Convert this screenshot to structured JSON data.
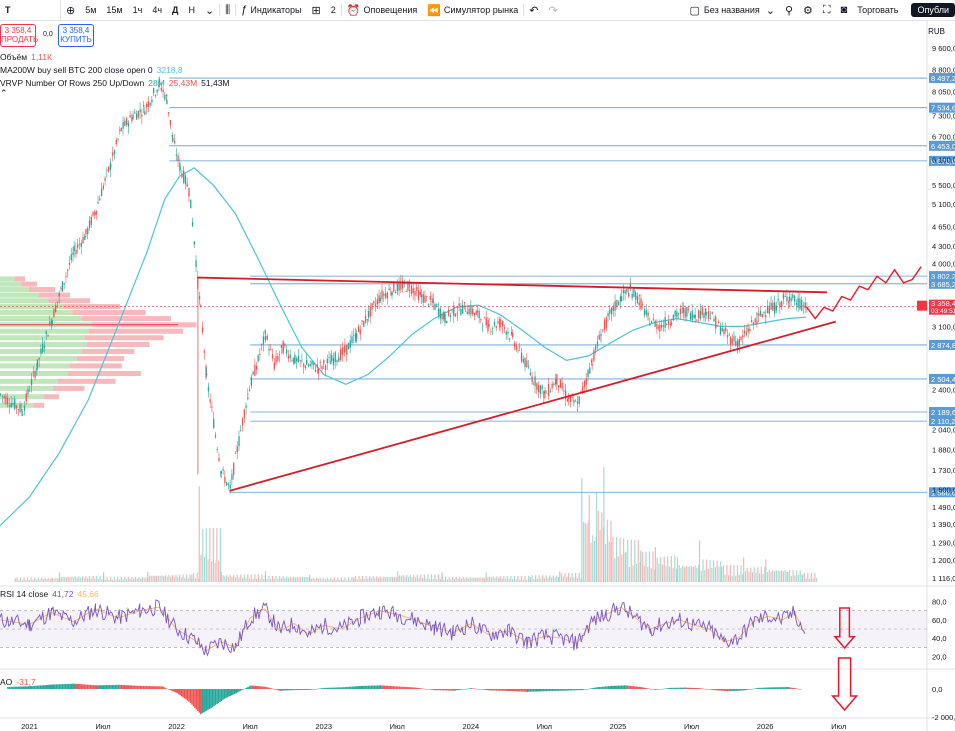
{
  "toolbar": {
    "symbol": "T",
    "intervals": [
      "5м",
      "15м",
      "1ч",
      "4ч",
      "Д",
      "Н"
    ],
    "indicators_label": "Индикаторы",
    "layout_count": "2",
    "alerts_label": "Оповещения",
    "replay_label": "Симулятор рынка",
    "layout_name": "Без названия",
    "trade_label": "Торговать",
    "publish_label": "Опубли"
  },
  "order_panel": {
    "sell_price": "3 358,4",
    "sell_label": "ПРОДАТЬ",
    "spread": "0,0",
    "buy_price": "3 358,4",
    "buy_label": "КУПИТЬ"
  },
  "legends": {
    "volume_name": "Объём",
    "volume_value": "1,11К",
    "ma_name": "MA200W buy sell BTC 200 close open 0",
    "ma_value": "3218,8",
    "vrvp_name": "VRVP Number Of Rows 250 Up/Down",
    "vrvp_up": "28M",
    "vrvp_down": "25,43M",
    "vrvp_total": "51,43M",
    "rsi_name": "RSI 14 close",
    "rsi_value1": "41,72",
    "rsi_value2": "45,66",
    "ao_name": "AO",
    "ao_value": "-31,7"
  },
  "currency": "RUB",
  "colors": {
    "up": "#26a69a",
    "down": "#ef5350",
    "ma": "#4ec4d8",
    "trendline": "#d81b25",
    "level": "#5b9bd5",
    "rsi": "#7e57c2",
    "rsi_signal": "#f4b860",
    "last_price": "#f23645"
  },
  "chart_data": {
    "type": "candlestick",
    "scale": "log",
    "y_ticks": [
      "9 600,0",
      "8 800,0",
      "8 050,0",
      "7 300,0",
      "6 700,0",
      "6 100,0",
      "5 500,0",
      "5 100,0",
      "4 650,0",
      "4 300,0",
      "4 000,0",
      "3 100,0",
      "2 400,0",
      "2 040,0",
      "1 880,0",
      "1 730,0",
      "1 600,0",
      "1 490,0",
      "1 390,0",
      "1 290,0",
      "1 200,0",
      "1 116,0"
    ],
    "x_ticks": [
      "2021",
      "Июл",
      "2022",
      "Июл",
      "2023",
      "Июл",
      "2024",
      "Июл",
      "2025",
      "Июл",
      "2026",
      "Июл"
    ],
    "price_levels": [
      {
        "label": "8 497,2",
        "value": 8497.2
      },
      {
        "label": "7 534,6",
        "value": 7534.6
      },
      {
        "label": "6 453,0",
        "value": 6453.0
      },
      {
        "label": "6 070,6",
        "value": 6070.6
      },
      {
        "label": "3 802,2",
        "value": 3802.2
      },
      {
        "label": "3 685,2",
        "value": 3685.2
      },
      {
        "label": "2 874,8",
        "value": 2874.8
      },
      {
        "label": "2 504,4",
        "value": 2504.4
      },
      {
        "label": "2 189,6",
        "value": 2189.6
      },
      {
        "label": "2 110,2",
        "value": 2110.2
      },
      {
        "label": "1 580,6",
        "value": 1580.6
      }
    ],
    "last_price": {
      "label": "3 358,4",
      "value": 3358.4,
      "countdown": "03:49:51"
    },
    "price_path": [
      [
        2020.8,
        2350
      ],
      [
        2020.95,
        2200
      ],
      [
        2021.05,
        2650
      ],
      [
        2021.15,
        3200
      ],
      [
        2021.22,
        3650
      ],
      [
        2021.3,
        4200
      ],
      [
        2021.38,
        4500
      ],
      [
        2021.45,
        5000
      ],
      [
        2021.55,
        6000
      ],
      [
        2021.62,
        6900
      ],
      [
        2021.7,
        7300
      ],
      [
        2021.78,
        7500
      ],
      [
        2021.88,
        8300
      ],
      [
        2021.93,
        7800
      ],
      [
        2021.97,
        6600
      ],
      [
        2022.02,
        5900
      ],
      [
        2022.08,
        5400
      ],
      [
        2022.14,
        3700
      ],
      [
        2022.16,
        3300
      ],
      [
        2022.2,
        2500
      ],
      [
        2022.26,
        2000
      ],
      [
        2022.3,
        1720
      ],
      [
        2022.36,
        1600
      ],
      [
        2022.42,
        1950
      ],
      [
        2022.48,
        2350
      ],
      [
        2022.55,
        2700
      ],
      [
        2022.6,
        3000
      ],
      [
        2022.66,
        2650
      ],
      [
        2022.72,
        2850
      ],
      [
        2022.8,
        2700
      ],
      [
        2022.88,
        2650
      ],
      [
        2022.96,
        2620
      ],
      [
        2023.05,
        2700
      ],
      [
        2023.14,
        2800
      ],
      [
        2023.22,
        3000
      ],
      [
        2023.3,
        3250
      ],
      [
        2023.38,
        3500
      ],
      [
        2023.46,
        3600
      ],
      [
        2023.52,
        3650
      ],
      [
        2023.58,
        3650
      ],
      [
        2023.66,
        3500
      ],
      [
        2023.74,
        3400
      ],
      [
        2023.82,
        3200
      ],
      [
        2023.88,
        3300
      ],
      [
        2023.96,
        3350
      ],
      [
        2024.04,
        3250
      ],
      [
        2024.12,
        3100
      ],
      [
        2024.2,
        3150
      ],
      [
        2024.28,
        2950
      ],
      [
        2024.34,
        2750
      ],
      [
        2024.42,
        2500
      ],
      [
        2024.5,
        2350
      ],
      [
        2024.58,
        2500
      ],
      [
        2024.66,
        2300
      ],
      [
        2024.72,
        2250
      ],
      [
        2024.78,
        2500
      ],
      [
        2024.82,
        2700
      ],
      [
        2024.88,
        3000
      ],
      [
        2024.94,
        3250
      ],
      [
        2025.02,
        3500
      ],
      [
        2025.08,
        3600
      ],
      [
        2025.14,
        3450
      ],
      [
        2025.2,
        3200
      ],
      [
        2025.28,
        3100
      ],
      [
        2025.36,
        3200
      ],
      [
        2025.44,
        3300
      ],
      [
        2025.52,
        3250
      ],
      [
        2025.6,
        3300
      ],
      [
        2025.68,
        3100
      ],
      [
        2025.76,
        2950
      ],
      [
        2025.82,
        2900
      ],
      [
        2025.88,
        3050
      ],
      [
        2025.94,
        3200
      ],
      [
        2026.0,
        3300
      ],
      [
        2026.06,
        3350
      ],
      [
        2026.12,
        3450
      ],
      [
        2026.16,
        3500
      ],
      [
        2026.22,
        3400
      ],
      [
        2026.28,
        3358
      ]
    ],
    "forecast_path": [
      [
        2026.28,
        3358
      ],
      [
        2026.34,
        3200
      ],
      [
        2026.4,
        3350
      ],
      [
        2026.46,
        3300
      ],
      [
        2026.52,
        3500
      ],
      [
        2026.58,
        3450
      ],
      [
        2026.64,
        3650
      ],
      [
        2026.7,
        3600
      ],
      [
        2026.76,
        3800
      ],
      [
        2026.82,
        3700
      ],
      [
        2026.88,
        3900
      ],
      [
        2026.94,
        3700
      ],
      [
        2027.0,
        3750
      ],
      [
        2027.06,
        3950
      ]
    ],
    "ma_path": [
      [
        2020.8,
        1380
      ],
      [
        2021.0,
        1550
      ],
      [
        2021.2,
        1850
      ],
      [
        2021.4,
        2300
      ],
      [
        2021.6,
        3100
      ],
      [
        2021.8,
        4200
      ],
      [
        2021.92,
        5200
      ],
      [
        2022.02,
        5700
      ],
      [
        2022.12,
        5900
      ],
      [
        2022.25,
        5500
      ],
      [
        2022.4,
        4900
      ],
      [
        2022.55,
        4100
      ],
      [
        2022.7,
        3400
      ],
      [
        2022.85,
        2850
      ],
      [
        2023.0,
        2550
      ],
      [
        2023.15,
        2450
      ],
      [
        2023.3,
        2550
      ],
      [
        2023.45,
        2750
      ],
      [
        2023.6,
        3000
      ],
      [
        2023.75,
        3200
      ],
      [
        2023.9,
        3350
      ],
      [
        2024.05,
        3380
      ],
      [
        2024.2,
        3250
      ],
      [
        2024.35,
        3050
      ],
      [
        2024.5,
        2850
      ],
      [
        2024.65,
        2700
      ],
      [
        2024.8,
        2750
      ],
      [
        2024.95,
        2900
      ],
      [
        2025.1,
        3050
      ],
      [
        2025.25,
        3150
      ],
      [
        2025.4,
        3200
      ],
      [
        2025.55,
        3150
      ],
      [
        2025.7,
        3100
      ],
      [
        2025.85,
        3100
      ],
      [
        2026.0,
        3150
      ],
      [
        2026.15,
        3200
      ],
      [
        2026.28,
        3219
      ]
    ],
    "upper_trendline": [
      [
        2022.14,
        3780
      ],
      [
        2026.42,
        3560
      ]
    ],
    "lower_trendline": [
      [
        2022.36,
        1590
      ],
      [
        2026.48,
        3160
      ]
    ],
    "rsi": {
      "levels": [
        30,
        50,
        70
      ],
      "y_ticks": [
        "80,0",
        "60,0",
        "40,0",
        "20,0"
      ],
      "path": [
        [
          2020.8,
          60
        ],
        [
          2021.0,
          55
        ],
        [
          2021.15,
          68
        ],
        [
          2021.3,
          58
        ],
        [
          2021.45,
          72
        ],
        [
          2021.6,
          62
        ],
        [
          2021.75,
          70
        ],
        [
          2021.88,
          74
        ],
        [
          2022.0,
          50
        ],
        [
          2022.12,
          38
        ],
        [
          2022.2,
          26
        ],
        [
          2022.3,
          36
        ],
        [
          2022.4,
          30
        ],
        [
          2022.5,
          62
        ],
        [
          2022.6,
          72
        ],
        [
          2022.7,
          48
        ],
        [
          2022.8,
          56
        ],
        [
          2022.9,
          44
        ],
        [
          2023.0,
          54
        ],
        [
          2023.12,
          50
        ],
        [
          2023.25,
          62
        ],
        [
          2023.38,
          70
        ],
        [
          2023.5,
          66
        ],
        [
          2023.62,
          60
        ],
        [
          2023.75,
          52
        ],
        [
          2023.88,
          46
        ],
        [
          2024.0,
          56
        ],
        [
          2024.12,
          44
        ],
        [
          2024.25,
          48
        ],
        [
          2024.38,
          36
        ],
        [
          2024.5,
          42
        ],
        [
          2024.62,
          40
        ],
        [
          2024.72,
          34
        ],
        [
          2024.82,
          58
        ],
        [
          2024.92,
          66
        ],
        [
          2025.02,
          74
        ],
        [
          2025.12,
          62
        ],
        [
          2025.22,
          50
        ],
        [
          2025.32,
          56
        ],
        [
          2025.42,
          60
        ],
        [
          2025.52,
          54
        ],
        [
          2025.62,
          50
        ],
        [
          2025.72,
          36
        ],
        [
          2025.82,
          40
        ],
        [
          2025.92,
          58
        ],
        [
          2026.02,
          64
        ],
        [
          2026.12,
          60
        ],
        [
          2026.2,
          68
        ],
        [
          2026.28,
          42
        ]
      ]
    },
    "ao": {
      "y_ticks": [
        "0,0",
        "-2 000,0"
      ],
      "bars": [
        [
          2020.85,
          150
        ],
        [
          2021.0,
          200
        ],
        [
          2021.15,
          320
        ],
        [
          2021.3,
          380
        ],
        [
          2021.45,
          260
        ],
        [
          2021.6,
          300
        ],
        [
          2021.75,
          220
        ],
        [
          2021.9,
          180
        ],
        [
          2022.0,
          -300
        ],
        [
          2022.08,
          -900
        ],
        [
          2022.16,
          -1800
        ],
        [
          2022.24,
          -1300
        ],
        [
          2022.32,
          -700
        ],
        [
          2022.4,
          -300
        ],
        [
          2022.5,
          250
        ],
        [
          2022.6,
          160
        ],
        [
          2022.7,
          -120
        ],
        [
          2022.8,
          -80
        ],
        [
          2022.9,
          -60
        ],
        [
          2023.0,
          80
        ],
        [
          2023.12,
          120
        ],
        [
          2023.25,
          220
        ],
        [
          2023.38,
          260
        ],
        [
          2023.5,
          180
        ],
        [
          2023.62,
          100
        ],
        [
          2023.75,
          -80
        ],
        [
          2023.88,
          -120
        ],
        [
          2024.0,
          60
        ],
        [
          2024.12,
          -100
        ],
        [
          2024.25,
          -140
        ],
        [
          2024.38,
          -200
        ],
        [
          2024.5,
          -160
        ],
        [
          2024.62,
          -120
        ],
        [
          2024.75,
          -80
        ],
        [
          2024.85,
          120
        ],
        [
          2024.95,
          220
        ],
        [
          2025.05,
          260
        ],
        [
          2025.15,
          140
        ],
        [
          2025.25,
          -60
        ],
        [
          2025.35,
          80
        ],
        [
          2025.45,
          100
        ],
        [
          2025.55,
          60
        ],
        [
          2025.65,
          -80
        ],
        [
          2025.75,
          -160
        ],
        [
          2025.85,
          -100
        ],
        [
          2025.95,
          80
        ],
        [
          2026.05,
          120
        ],
        [
          2026.15,
          140
        ],
        [
          2026.25,
          -32
        ]
      ]
    },
    "volume": [
      [
        2020.9,
        0.06
      ],
      [
        2021.2,
        0.08
      ],
      [
        2021.5,
        0.07
      ],
      [
        2021.8,
        0.1
      ],
      [
        2022.1,
        0.12
      ],
      [
        2022.15,
        0.7
      ],
      [
        2022.3,
        0.1
      ],
      [
        2022.6,
        0.08
      ],
      [
        2022.9,
        0.06
      ],
      [
        2023.2,
        0.08
      ],
      [
        2023.5,
        0.1
      ],
      [
        2023.8,
        0.07
      ],
      [
        2024.1,
        0.08
      ],
      [
        2024.4,
        0.09
      ],
      [
        2024.6,
        0.12
      ],
      [
        2024.75,
        0.95
      ],
      [
        2024.8,
        0.7
      ],
      [
        2024.85,
        1.0
      ],
      [
        2024.9,
        0.85
      ],
      [
        2024.95,
        0.6
      ],
      [
        2025.05,
        0.55
      ],
      [
        2025.15,
        0.4
      ],
      [
        2025.25,
        0.35
      ],
      [
        2025.4,
        0.25
      ],
      [
        2025.55,
        0.3
      ],
      [
        2025.7,
        0.22
      ],
      [
        2025.85,
        0.2
      ],
      [
        2026.0,
        0.18
      ],
      [
        2026.15,
        0.16
      ],
      [
        2026.25,
        0.12
      ]
    ],
    "vrvp_profile": [
      [
        2250,
        0.35,
        0.1
      ],
      [
        2330,
        0.45,
        0.15
      ],
      [
        2410,
        0.55,
        0.3
      ],
      [
        2480,
        0.6,
        0.55
      ],
      [
        2560,
        0.7,
        0.7
      ],
      [
        2640,
        0.72,
        0.5
      ],
      [
        2720,
        0.8,
        0.45
      ],
      [
        2800,
        0.85,
        0.5
      ],
      [
        2880,
        0.9,
        0.6
      ],
      [
        2960,
        0.88,
        0.75
      ],
      [
        3040,
        0.92,
        0.9
      ],
      [
        3120,
        0.95,
        1.0
      ],
      [
        3200,
        0.85,
        0.85
      ],
      [
        3280,
        0.75,
        0.7
      ],
      [
        3360,
        0.65,
        0.55
      ],
      [
        3440,
        0.5,
        0.4
      ],
      [
        3520,
        0.4,
        0.3
      ],
      [
        3600,
        0.3,
        0.25
      ],
      [
        3680,
        0.22,
        0.15
      ],
      [
        3760,
        0.15,
        0.1
      ]
    ]
  }
}
